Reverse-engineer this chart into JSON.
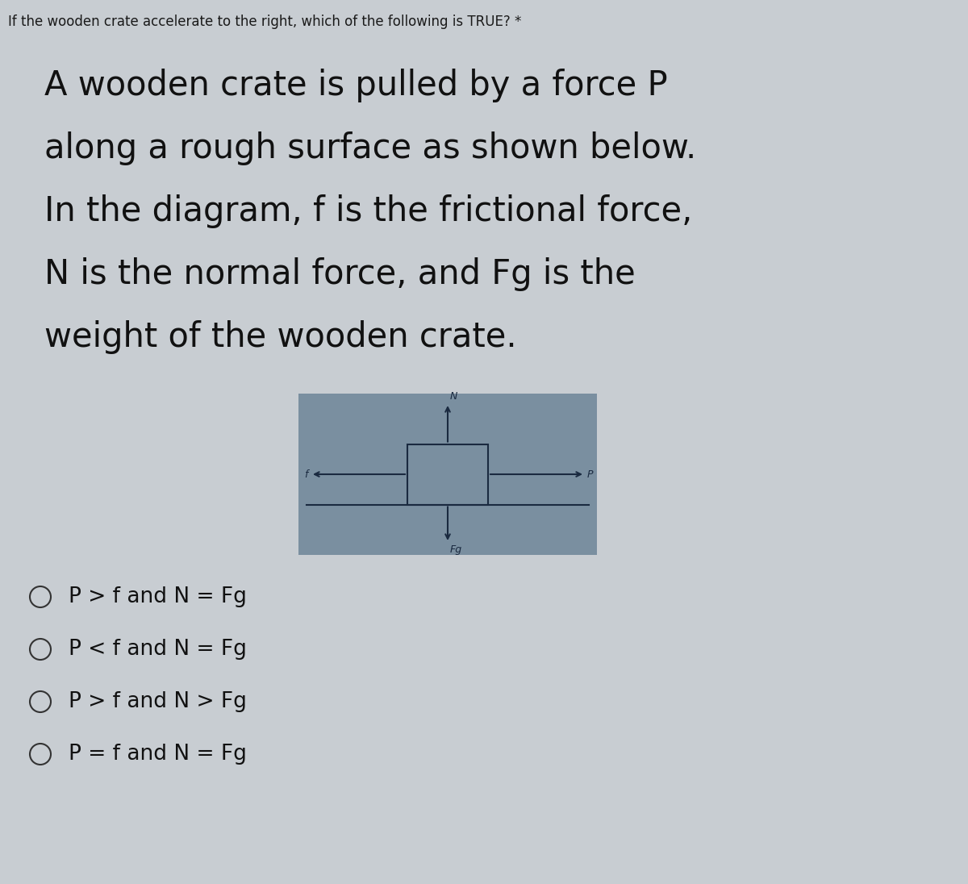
{
  "title": "If the wooden crate accelerate to the right, which of the following is TRUE? *",
  "title_fontsize": 12,
  "title_color": "#1a1a1a",
  "bg_color": "#c8cdd2",
  "body_lines": [
    "A wooden crate is pulled by a force P",
    "along a rough surface as shown below.",
    "In the diagram, f is the frictional force,",
    "N is the normal force, and Fg is the",
    "weight of the wooden crate."
  ],
  "body_fontsize": 30,
  "diagram_bg": "#7a8fa0",
  "options": [
    "P > f and N = Fg",
    "P < f and N = Fg",
    "P > f and N > Fg",
    "P = f and N = Fg"
  ],
  "option_fontsize": 19,
  "option_color": "#111111",
  "arrow_color": "#1a2a40",
  "crate_color": "#1a2a40"
}
